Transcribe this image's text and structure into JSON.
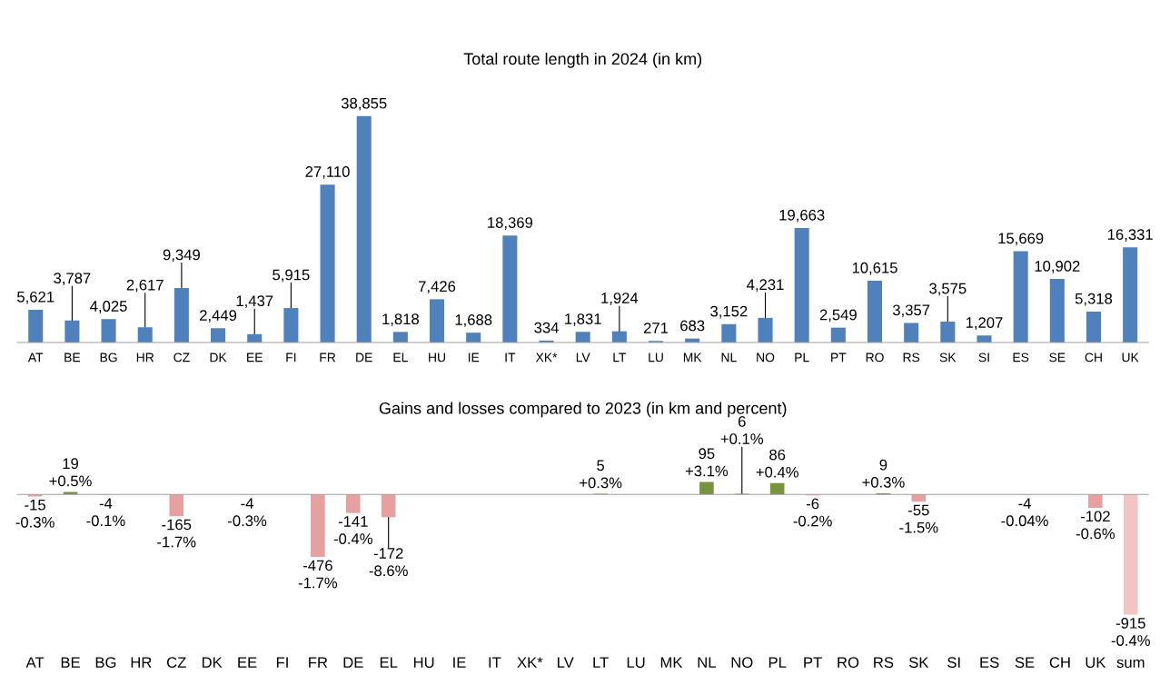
{
  "chart_data": [
    {
      "type": "bar",
      "title": "Total route length in 2024 (in km)",
      "categories": [
        "AT",
        "BE",
        "BG",
        "HR",
        "CZ",
        "DK",
        "EE",
        "FI",
        "FR",
        "DE",
        "EL",
        "HU",
        "IE",
        "IT",
        "XK*",
        "LV",
        "LT",
        "LU",
        "MK",
        "NL",
        "NO",
        "PL",
        "PT",
        "RO",
        "RS",
        "SK",
        "SI",
        "ES",
        "SE",
        "CH",
        "UK"
      ],
      "values": [
        5621,
        3787,
        4025,
        2617,
        9349,
        2449,
        1437,
        5915,
        27110,
        38855,
        1818,
        7426,
        1688,
        18369,
        334,
        1831,
        1924,
        271,
        683,
        3152,
        4231,
        19663,
        2549,
        10615,
        3357,
        3575,
        1207,
        15669,
        10902,
        5318,
        16331
      ],
      "value_labels": [
        "5,621",
        "3,787",
        "4,025",
        "2,617",
        "9,349",
        "2,449",
        "1,437",
        "5,915",
        "27,110",
        "38,855",
        "1,818",
        "7,426",
        "1,688",
        "18,369",
        "334",
        "1,831",
        "1,924",
        "271",
        "683",
        "3,152",
        "4,231",
        "19,663",
        "2,549",
        "10,615",
        "3,357",
        "3,575",
        "1,207",
        "15,669",
        "10,902",
        "5,318",
        "16,331"
      ],
      "color": "#4f81bd",
      "grid": false,
      "legend": false
    },
    {
      "type": "bar",
      "title": "Gains and losses compared to 2023 (in km and percent)",
      "categories": [
        "AT",
        "BE",
        "BG",
        "HR",
        "CZ",
        "DK",
        "EE",
        "FI",
        "FR",
        "DE",
        "EL",
        "HU",
        "IE",
        "IT",
        "XK*",
        "LV",
        "LT",
        "LU",
        "MK",
        "NL",
        "NO",
        "PL",
        "PT",
        "RO",
        "RS",
        "SK",
        "SI",
        "ES",
        "SE",
        "CH",
        "UK",
        "sum"
      ],
      "values": [
        -15,
        19,
        -4,
        0,
        -165,
        0,
        -4,
        0,
        -476,
        -141,
        -172,
        0,
        0,
        null,
        0,
        0,
        5,
        0,
        0,
        95,
        6,
        86,
        -6,
        0,
        9,
        -55,
        0,
        null,
        -4,
        0,
        -102,
        -915
      ],
      "value_labels": [
        "-15\n-0.3%",
        "19\n+0.5%",
        "-4\n-0.1%",
        null,
        "-165\n-1.7%",
        null,
        "-4\n-0.3%",
        null,
        "-476\n-1.7%",
        "-141\n-0.4%",
        "-172\n-8.6%",
        null,
        null,
        null,
        null,
        null,
        "5\n+0.3%",
        null,
        null,
        "95\n+3.1%",
        "6\n+0.1%",
        "86\n+0.4%",
        "-6\n-0.2%",
        null,
        "9\n+0.3%",
        "-55\n-1.5%",
        null,
        null,
        "-4\n-0.04%",
        null,
        "-102\n-0.6%",
        "-915\n-0.4%"
      ],
      "colors": [
        "#e6a0a0",
        "#77933c",
        "#e6a0a0",
        "#e6a0a0",
        "#e6a0a0",
        "#e6a0a0",
        "#e6a0a0",
        "#e6a0a0",
        "#e6a0a0",
        "#e6a0a0",
        "#e6a0a0",
        "#e6a0a0",
        "#e6a0a0",
        "#77933c",
        "#e6a0a0",
        "#e6a0a0",
        "#77933c",
        "#e6a0a0",
        "#e6a0a0",
        "#77933c",
        "#77933c",
        "#77933c",
        "#e6a0a0",
        "#e6a0a0",
        "#77933c",
        "#e6a0a0",
        "#e6a0a0",
        "#77933c",
        "#e6a0a0",
        "#e6a0a0",
        "#e6a0a0",
        "#f2c4c4"
      ],
      "grid": false,
      "legend": false
    }
  ]
}
